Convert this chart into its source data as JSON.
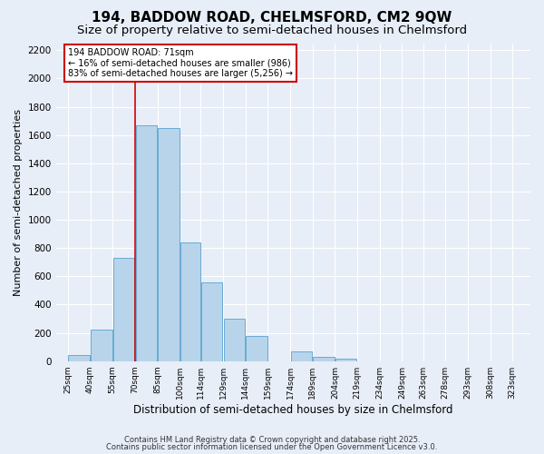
{
  "title": "194, BADDOW ROAD, CHELMSFORD, CM2 9QW",
  "subtitle": "Size of property relative to semi-detached houses in Chelmsford",
  "xlabel": "Distribution of semi-detached houses by size in Chelmsford",
  "ylabel": "Number of semi-detached properties",
  "bar_left_edges": [
    25,
    40,
    55,
    70,
    85,
    100,
    114,
    129,
    144,
    159,
    174,
    189,
    204,
    219,
    234,
    249,
    263,
    278,
    293,
    308
  ],
  "bar_widths": [
    15,
    15,
    15,
    15,
    15,
    14,
    15,
    15,
    15,
    15,
    15,
    15,
    15,
    15,
    15,
    14,
    15,
    15,
    15,
    15
  ],
  "bar_heights": [
    40,
    220,
    730,
    1670,
    1650,
    840,
    560,
    300,
    180,
    0,
    70,
    30,
    15,
    0,
    0,
    0,
    0,
    0,
    0,
    0
  ],
  "bar_color": "#b8d4ea",
  "bar_edge_color": "#6aaad4",
  "property_line_x": 70,
  "property_line_color": "#cc0000",
  "ylim": [
    0,
    2250
  ],
  "yticks": [
    0,
    200,
    400,
    600,
    800,
    1000,
    1200,
    1400,
    1600,
    1800,
    2000,
    2200
  ],
  "xtick_labels": [
    "25sqm",
    "40sqm",
    "55sqm",
    "70sqm",
    "85sqm",
    "100sqm",
    "114sqm",
    "129sqm",
    "144sqm",
    "159sqm",
    "174sqm",
    "189sqm",
    "204sqm",
    "219sqm",
    "234sqm",
    "249sqm",
    "263sqm",
    "278sqm",
    "293sqm",
    "308sqm",
    "323sqm"
  ],
  "xtick_positions": [
    25,
    40,
    55,
    70,
    85,
    100,
    114,
    129,
    144,
    159,
    174,
    189,
    204,
    219,
    234,
    249,
    263,
    278,
    293,
    308,
    323
  ],
  "annotation_title": "194 BADDOW ROAD: 71sqm",
  "annotation_line1": "← 16% of semi-detached houses are smaller (986)",
  "annotation_line2": "83% of semi-detached houses are larger (5,256) →",
  "annotation_box_color": "#ffffff",
  "annotation_box_edge": "#cc0000",
  "footer1": "Contains HM Land Registry data © Crown copyright and database right 2025.",
  "footer2": "Contains public sector information licensed under the Open Government Licence v3.0.",
  "background_color": "#e8eef8",
  "grid_color": "#ffffff",
  "title_fontsize": 11,
  "subtitle_fontsize": 9.5
}
